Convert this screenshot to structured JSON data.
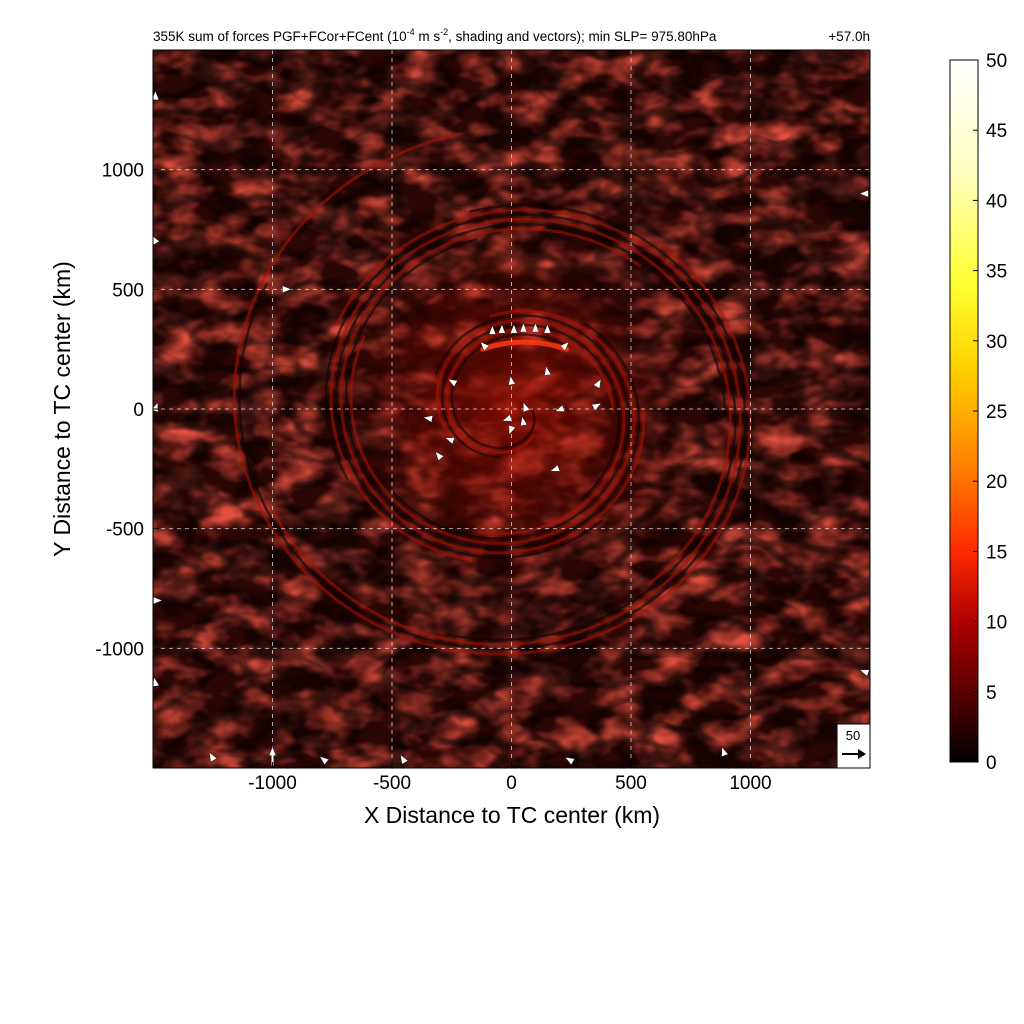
{
  "chart_data": {
    "type": "heatmap",
    "title_main": "355K sum of forces PGF+FCor+FCent (10",
    "title_exp1": "-4",
    "title_mid": " m s",
    "title_exp2": "-2",
    "title_tail": ", shading and vectors); min SLP= 975.80hPa",
    "forecast_time": "+57.0h",
    "xlabel": "X Distance to TC center (km)",
    "ylabel": "Y Distance to TC center (km)",
    "xlim": [
      -1500,
      1500
    ],
    "ylim": [
      -1500,
      1500
    ],
    "x_ticks": [
      -1000,
      -500,
      0,
      500,
      1000
    ],
    "x_tick_labels": [
      "-1000",
      "-500",
      "0",
      "500",
      "1000"
    ],
    "y_ticks": [
      1000,
      500,
      0,
      -500,
      -1000
    ],
    "y_tick_labels": [
      "1000",
      "500",
      "0",
      "-500",
      "-1000"
    ],
    "grid": true,
    "colorbar": {
      "min": 0,
      "max": 50,
      "ticks": [
        0,
        5,
        10,
        15,
        20,
        25,
        30,
        35,
        40,
        45,
        50
      ],
      "tick_labels": [
        "0",
        "5",
        "10",
        "15",
        "20",
        "25",
        "30",
        "35",
        "40",
        "45",
        "50"
      ],
      "colormap": "hot",
      "colors": [
        "#000000",
        "#5a0000",
        "#b00000",
        "#ff2a00",
        "#ff8000",
        "#ffd000",
        "#ffff30",
        "#ffffc0",
        "#ffffff"
      ]
    },
    "reference_vector": {
      "label": "50",
      "value": 50
    },
    "field_background": "#3a0a05",
    "vectors": [
      {
        "x": -80,
        "y": 320,
        "dir": 90
      },
      {
        "x": -40,
        "y": 325,
        "dir": 90
      },
      {
        "x": 10,
        "y": 325,
        "dir": 90
      },
      {
        "x": 50,
        "y": 330,
        "dir": 90
      },
      {
        "x": 100,
        "y": 330,
        "dir": 90
      },
      {
        "x": 150,
        "y": 325,
        "dir": 90
      },
      {
        "x": -110,
        "y": 260,
        "dir": 135
      },
      {
        "x": 220,
        "y": 260,
        "dir": 45
      },
      {
        "x": -240,
        "y": 110,
        "dir": 150
      },
      {
        "x": 360,
        "y": 100,
        "dir": 60
      },
      {
        "x": 150,
        "y": 150,
        "dir": 100
      },
      {
        "x": 0,
        "y": 110,
        "dir": 100
      },
      {
        "x": -340,
        "y": -40,
        "dir": 170
      },
      {
        "x": 350,
        "y": 10,
        "dir": 30
      },
      {
        "x": 210,
        "y": 0,
        "dir": 200
      },
      {
        "x": 60,
        "y": 0,
        "dir": 110
      },
      {
        "x": -10,
        "y": -40,
        "dir": 200
      },
      {
        "x": 0,
        "y": -80,
        "dir": 250
      },
      {
        "x": 50,
        "y": -60,
        "dir": 100
      },
      {
        "x": -250,
        "y": -130,
        "dir": 160
      },
      {
        "x": -300,
        "y": -200,
        "dir": 130
      },
      {
        "x": 190,
        "y": -250,
        "dir": 200
      },
      {
        "x": -950,
        "y": 500,
        "dir": 0
      },
      {
        "x": -1000,
        "y": -1440,
        "dir": 90
      },
      {
        "x": 890,
        "y": -1440,
        "dir": 110
      },
      {
        "x": -1250,
        "y": -1460,
        "dir": 120
      },
      {
        "x": -780,
        "y": -1470,
        "dir": 140
      },
      {
        "x": -450,
        "y": -1470,
        "dir": 120
      },
      {
        "x": 250,
        "y": -1470,
        "dir": 150
      },
      {
        "x": -1490,
        "y": 1300,
        "dir": 90
      },
      {
        "x": -1490,
        "y": 700,
        "dir": 120
      },
      {
        "x": -1490,
        "y": 0,
        "dir": 70
      },
      {
        "x": -1490,
        "y": -800,
        "dir": 0
      },
      {
        "x": -1490,
        "y": -1150,
        "dir": 100
      },
      {
        "x": 1485,
        "y": 900,
        "dir": 180
      },
      {
        "x": 1485,
        "y": -1100,
        "dir": 160
      }
    ]
  }
}
